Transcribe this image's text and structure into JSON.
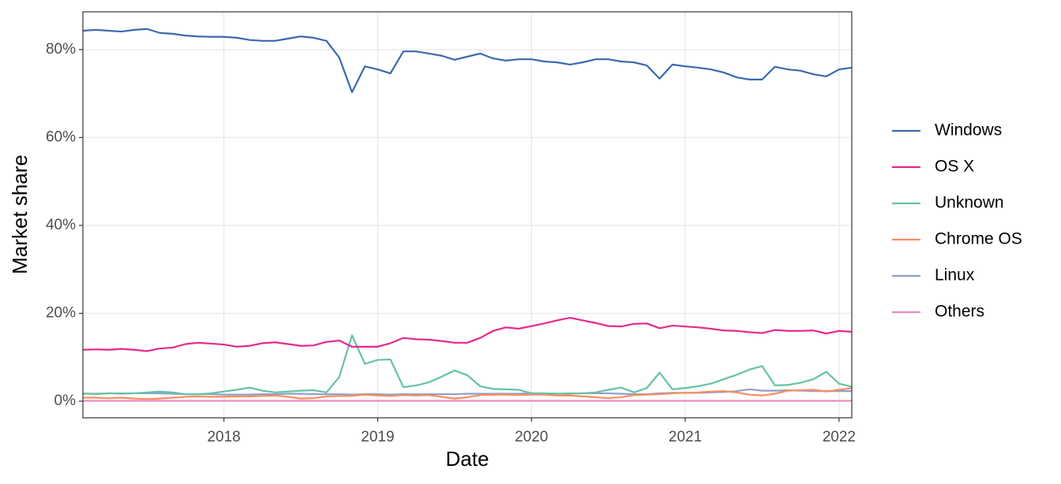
{
  "chart_data": {
    "type": "line",
    "xlabel": "Date",
    "ylabel": "Market share",
    "x": [
      2017.083,
      2017.167,
      2017.25,
      2017.333,
      2017.417,
      2017.5,
      2017.583,
      2017.667,
      2017.75,
      2017.833,
      2017.917,
      2018,
      2018.083,
      2018.167,
      2018.25,
      2018.333,
      2018.417,
      2018.5,
      2018.583,
      2018.667,
      2018.75,
      2018.833,
      2018.917,
      2019,
      2019.083,
      2019.167,
      2019.25,
      2019.333,
      2019.417,
      2019.5,
      2019.583,
      2019.667,
      2019.75,
      2019.833,
      2019.917,
      2020,
      2020.083,
      2020.167,
      2020.25,
      2020.333,
      2020.417,
      2020.5,
      2020.583,
      2020.667,
      2020.75,
      2020.833,
      2020.917,
      2021,
      2021.083,
      2021.167,
      2021.25,
      2021.333,
      2021.417,
      2021.5,
      2021.583,
      2021.667,
      2021.75,
      2021.833,
      2021.917,
      2022,
      2022.083
    ],
    "series": [
      {
        "name": "Windows",
        "color": "#3a6aae",
        "values": [
          84.3,
          84.5,
          84.3,
          84.1,
          84.5,
          84.7,
          83.8,
          83.6,
          83.2,
          83.0,
          82.9,
          82.9,
          82.7,
          82.2,
          82.0,
          82.0,
          82.5,
          83.0,
          82.7,
          82.0,
          78.2,
          70.3,
          76.2,
          75.5,
          74.6,
          79.6,
          79.6,
          79.1,
          78.6,
          77.7,
          78.4,
          79.1,
          78.0,
          77.5,
          77.8,
          77.8,
          77.3,
          77.1,
          76.6,
          77.1,
          77.8,
          77.8,
          77.3,
          77.1,
          76.4,
          73.4,
          76.6,
          76.2,
          75.9,
          75.5,
          74.8,
          73.7,
          73.2,
          73.2,
          76.1,
          75.5,
          75.2,
          74.4,
          73.9,
          75.5,
          75.9
        ]
      },
      {
        "name": "OS X",
        "color": "#e7298a",
        "values": [
          11.7,
          11.8,
          11.7,
          11.9,
          11.7,
          11.4,
          12.0,
          12.2,
          13.0,
          13.3,
          13.1,
          12.9,
          12.4,
          12.6,
          13.2,
          13.4,
          13.0,
          12.6,
          12.7,
          13.5,
          13.8,
          12.4,
          12.4,
          12.4,
          13.2,
          14.4,
          14.1,
          14.0,
          13.7,
          13.3,
          13.3,
          14.4,
          16.0,
          16.8,
          16.5,
          17.1,
          17.7,
          18.4,
          19.0,
          18.4,
          17.8,
          17.1,
          17.0,
          17.6,
          17.7,
          16.6,
          17.2,
          17.0,
          16.8,
          16.5,
          16.1,
          16.0,
          15.7,
          15.5,
          16.2,
          16.0,
          16.0,
          16.1,
          15.4,
          16.0,
          15.8
        ]
      },
      {
        "name": "Unknown",
        "color": "#66c2a5",
        "values": [
          1.8,
          1.6,
          1.8,
          1.8,
          1.8,
          2.0,
          2.2,
          2.0,
          1.6,
          1.6,
          1.8,
          2.2,
          2.6,
          3.1,
          2.4,
          2.0,
          2.2,
          2.4,
          2.5,
          2.0,
          5.5,
          15.0,
          8.5,
          9.4,
          9.5,
          3.2,
          3.6,
          4.3,
          5.6,
          7.0,
          5.9,
          3.4,
          2.8,
          2.7,
          2.6,
          1.8,
          1.8,
          1.7,
          1.8,
          1.8,
          2.0,
          2.6,
          3.1,
          2.0,
          3.0,
          6.5,
          2.7,
          3.0,
          3.4,
          4.0,
          5.0,
          6.0,
          7.2,
          8.0,
          3.6,
          3.7,
          4.2,
          5.0,
          6.7,
          4.0,
          3.3
        ]
      },
      {
        "name": "Chrome OS",
        "color": "#fc8d62",
        "values": [
          0.8,
          0.8,
          0.7,
          0.8,
          0.6,
          0.5,
          0.6,
          0.8,
          1.0,
          1.1,
          1.0,
          1.0,
          1.1,
          1.1,
          1.2,
          1.3,
          1.0,
          0.6,
          0.7,
          1.1,
          1.2,
          1.2,
          1.5,
          1.3,
          1.2,
          1.4,
          1.3,
          1.4,
          1.0,
          0.6,
          0.9,
          1.4,
          1.5,
          1.5,
          1.4,
          1.5,
          1.5,
          1.3,
          1.3,
          1.1,
          0.9,
          0.7,
          0.9,
          1.4,
          1.5,
          1.6,
          1.8,
          1.9,
          2.0,
          2.2,
          2.3,
          2.0,
          1.5,
          1.3,
          1.7,
          2.4,
          2.5,
          2.6,
          2.2,
          2.6,
          3.0
        ]
      },
      {
        "name": "Linux",
        "color": "#8da0cb",
        "values": [
          1.7,
          1.7,
          1.8,
          1.7,
          1.8,
          1.8,
          1.8,
          1.7,
          1.6,
          1.6,
          1.6,
          1.5,
          1.5,
          1.5,
          1.6,
          1.6,
          1.7,
          1.7,
          1.6,
          1.6,
          1.6,
          1.5,
          1.6,
          1.6,
          1.5,
          1.6,
          1.6,
          1.6,
          1.6,
          1.6,
          1.7,
          1.7,
          1.7,
          1.7,
          1.7,
          1.8,
          1.8,
          1.7,
          1.7,
          1.8,
          1.8,
          1.8,
          1.7,
          1.6,
          1.6,
          1.8,
          1.9,
          1.9,
          1.9,
          2.0,
          2.1,
          2.3,
          2.7,
          2.4,
          2.4,
          2.5,
          2.4,
          2.3,
          2.3,
          2.3,
          2.3
        ]
      },
      {
        "name": "Others",
        "color": "#e78ac3",
        "values": [
          0.1,
          0.1,
          0.1,
          0.1,
          0.1,
          0.1,
          0.1,
          0.1,
          0.1,
          0.1,
          0.1,
          0.1,
          0.1,
          0.1,
          0.1,
          0.1,
          0.1,
          0.1,
          0.1,
          0.1,
          0.1,
          0.1,
          0.1,
          0.1,
          0.1,
          0.1,
          0.1,
          0.1,
          0.1,
          0.1,
          0.1,
          0.1,
          0.1,
          0.1,
          0.1,
          0.1,
          0.1,
          0.1,
          0.1,
          0.1,
          0.1,
          0.1,
          0.1,
          0.1,
          0.1,
          0.1,
          0.1,
          0.1,
          0.1,
          0.1,
          0.1,
          0.1,
          0.1,
          0.1,
          0.1,
          0.1,
          0.1,
          0.1,
          0.1,
          0.1,
          0.1
        ]
      }
    ],
    "xlim": [
      2017.083,
      2022.083
    ],
    "xticks": [
      2018,
      2019,
      2020,
      2021,
      2022
    ],
    "ylim": [
      -3.77,
      88.6
    ],
    "yticks": [
      {
        "value": 0,
        "label": "0%"
      },
      {
        "value": 20,
        "label": "20%"
      },
      {
        "value": 40,
        "label": "40%"
      },
      {
        "value": 60,
        "label": "60%"
      },
      {
        "value": 80,
        "label": "80%"
      }
    ],
    "grid": true,
    "legend": "right"
  }
}
